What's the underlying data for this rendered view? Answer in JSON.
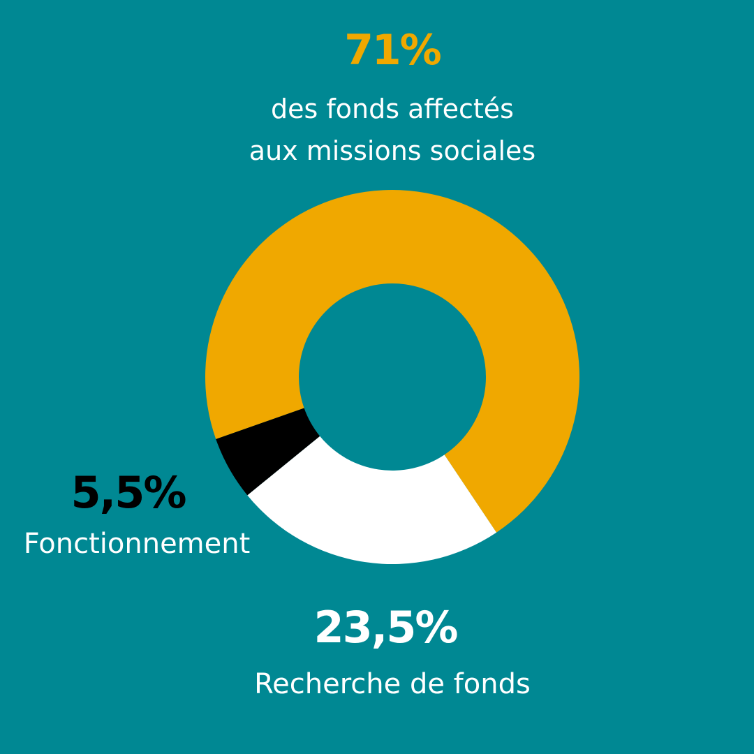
{
  "colors": {
    "background": "#008893",
    "missions": "#F0A800",
    "recherche": "#FFFFFF",
    "fonctionnement": "#000000"
  },
  "chart_data": {
    "type": "pie",
    "donut": true,
    "categories": [
      "des fonds affectés aux missions sociales",
      "Recherche de fonds",
      "Fonctionnement"
    ],
    "values": [
      71,
      23.5,
      5.5
    ],
    "data_labels": [
      "71%",
      "23,5%",
      "5,5%"
    ],
    "colors": [
      "#F0A800",
      "#FFFFFF",
      "#000000"
    ]
  },
  "labels": {
    "missions": {
      "pct": "71%",
      "line1": "des fonds affectés",
      "line2": "aux missions sociales"
    },
    "fonctionnement": {
      "pct": "5,5%",
      "text": "Fonctionnement"
    },
    "recherche": {
      "pct": "23,5%",
      "text": "Recherche de fonds"
    }
  }
}
